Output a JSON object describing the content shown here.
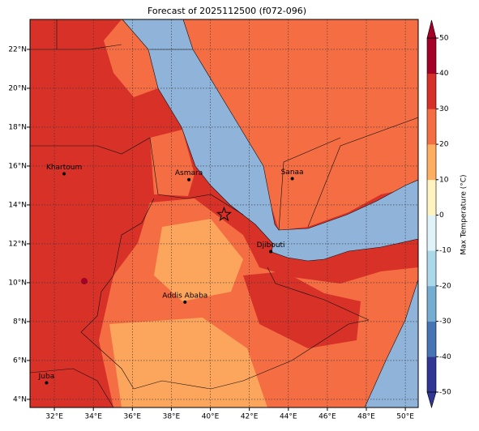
{
  "title": "Forecast of 2025112500 (f072-096)",
  "map": {
    "lon_range": [
      30.75,
      50.66
    ],
    "lat_range": [
      3.58,
      23.54
    ],
    "lon_ticks": [
      {
        "value": 32,
        "label": "32°E"
      },
      {
        "value": 34,
        "label": "34°E"
      },
      {
        "value": 36,
        "label": "36°E"
      },
      {
        "value": 38,
        "label": "38°E"
      },
      {
        "value": 40,
        "label": "40°E"
      },
      {
        "value": 42,
        "label": "42°E"
      },
      {
        "value": 44,
        "label": "44°E"
      },
      {
        "value": 46,
        "label": "46°E"
      },
      {
        "value": 48,
        "label": "48°E"
      },
      {
        "value": 50,
        "label": "50°E"
      }
    ],
    "lat_ticks": [
      {
        "value": 4,
        "label": "4°N"
      },
      {
        "value": 6,
        "label": "6°N"
      },
      {
        "value": 8,
        "label": "8°N"
      },
      {
        "value": 10,
        "label": "10°N"
      },
      {
        "value": 12,
        "label": "12°N"
      },
      {
        "value": 14,
        "label": "14°N"
      },
      {
        "value": 16,
        "label": "16°N"
      },
      {
        "value": 18,
        "label": "18°N"
      },
      {
        "value": 20,
        "label": "20°N"
      },
      {
        "value": 22,
        "label": "22°N"
      }
    ],
    "cities": [
      {
        "name": "Khartoum",
        "lon": 32.5,
        "lat": 15.6
      },
      {
        "name": "Asmara",
        "lon": 38.9,
        "lat": 15.3
      },
      {
        "name": "Sanaa",
        "lon": 44.2,
        "lat": 15.35
      },
      {
        "name": "Djibouti",
        "lon": 43.1,
        "lat": 11.6
      },
      {
        "name": "Addis Ababa",
        "lon": 38.7,
        "lat": 9.0
      },
      {
        "name": "Juba",
        "lon": 31.6,
        "lat": 4.85
      }
    ],
    "star": {
      "lon": 40.7,
      "lat": 13.5
    }
  },
  "colorbar": {
    "label": "Max Temperature (°C)",
    "range": [
      -50,
      50
    ],
    "ticks": [
      -50,
      -40,
      -30,
      -20,
      -10,
      0,
      10,
      20,
      30,
      40,
      50
    ],
    "colors": [
      "#313695",
      "#4575b4",
      "#74add1",
      "#abd9e9",
      "#e0f3f8",
      "#fff3c0",
      "#fdae61",
      "#f46d43",
      "#d73027",
      "#a50026"
    ]
  }
}
